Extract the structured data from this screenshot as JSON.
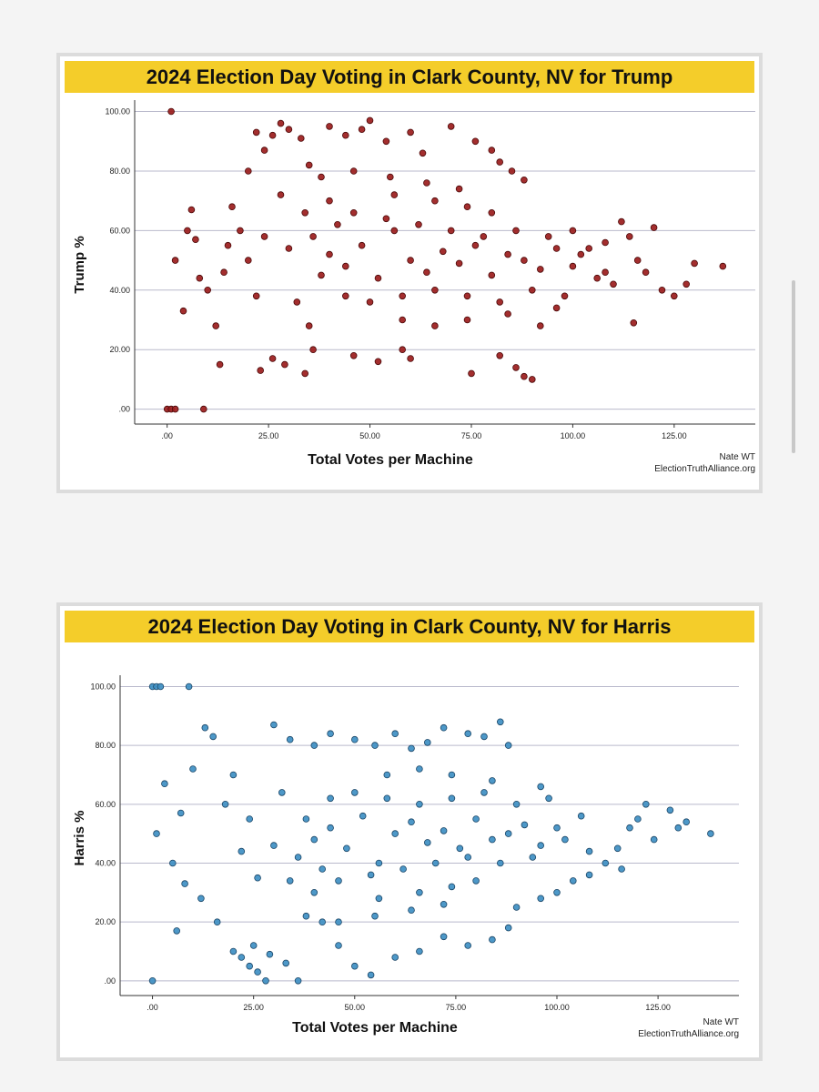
{
  "chart_data": [
    {
      "type": "scatter",
      "title": "2024 Election Day Voting in Clark County, NV for Trump",
      "xlabel": "Total Votes per Machine",
      "ylabel": "Trump %",
      "xlim": [
        -8,
        145
      ],
      "ylim": [
        -5,
        102
      ],
      "x_ticks": [
        ".00",
        "25.00",
        "50.00",
        "75.00",
        "100.00",
        "125.00"
      ],
      "y_ticks": [
        ".00",
        "20.00",
        "40.00",
        "60.00",
        "80.00",
        "100.00"
      ],
      "grid": "horizontal",
      "credit": [
        "Nate WT",
        "ElectionTruthAlliance.org"
      ],
      "point_color": "#9b1c1c",
      "point_stroke": "#4a0808",
      "points": [
        [
          1,
          100
        ],
        [
          0,
          0
        ],
        [
          1,
          0
        ],
        [
          2,
          0
        ],
        [
          9,
          0
        ],
        [
          2,
          50
        ],
        [
          4,
          33
        ],
        [
          5,
          60
        ],
        [
          7,
          57
        ],
        [
          6,
          67
        ],
        [
          8,
          44
        ],
        [
          10,
          40
        ],
        [
          12,
          28
        ],
        [
          14,
          46
        ],
        [
          15,
          55
        ],
        [
          13,
          15
        ],
        [
          16,
          68
        ],
        [
          18,
          60
        ],
        [
          20,
          50
        ],
        [
          20,
          80
        ],
        [
          22,
          93
        ],
        [
          24,
          87
        ],
        [
          26,
          92
        ],
        [
          28,
          96
        ],
        [
          30,
          94
        ],
        [
          33,
          91
        ],
        [
          23,
          13
        ],
        [
          26,
          17
        ],
        [
          29,
          15
        ],
        [
          34,
          12
        ],
        [
          36,
          20
        ],
        [
          22,
          38
        ],
        [
          24,
          58
        ],
        [
          28,
          72
        ],
        [
          35,
          82
        ],
        [
          35,
          28
        ],
        [
          40,
          95
        ],
        [
          44,
          92
        ],
        [
          48,
          94
        ],
        [
          50,
          97
        ],
        [
          54,
          90
        ],
        [
          60,
          93
        ],
        [
          63,
          86
        ],
        [
          70,
          95
        ],
        [
          76,
          90
        ],
        [
          80,
          87
        ],
        [
          82,
          83
        ],
        [
          85,
          80
        ],
        [
          88,
          77
        ],
        [
          46,
          18
        ],
        [
          52,
          16
        ],
        [
          58,
          20
        ],
        [
          60,
          17
        ],
        [
          75,
          12
        ],
        [
          82,
          18
        ],
        [
          86,
          14
        ],
        [
          88,
          11
        ],
        [
          90,
          10
        ],
        [
          92,
          28
        ],
        [
          100,
          60
        ],
        [
          104,
          54
        ],
        [
          108,
          46
        ],
        [
          110,
          42
        ],
        [
          112,
          63
        ],
        [
          114,
          58
        ],
        [
          116,
          50
        ],
        [
          118,
          46
        ],
        [
          120,
          61
        ],
        [
          122,
          40
        ],
        [
          125,
          38
        ],
        [
          128,
          42
        ],
        [
          130,
          49
        ],
        [
          137,
          48
        ],
        [
          115,
          29
        ],
        [
          40,
          52
        ],
        [
          44,
          48
        ],
        [
          48,
          55
        ],
        [
          52,
          44
        ],
        [
          56,
          60
        ],
        [
          60,
          50
        ],
        [
          64,
          46
        ],
        [
          68,
          53
        ],
        [
          72,
          49
        ],
        [
          76,
          55
        ],
        [
          80,
          45
        ],
        [
          84,
          52
        ],
        [
          88,
          50
        ],
        [
          92,
          47
        ],
        [
          96,
          54
        ],
        [
          100,
          48
        ],
        [
          42,
          62
        ],
        [
          46,
          66
        ],
        [
          54,
          64
        ],
        [
          62,
          62
        ],
        [
          70,
          60
        ],
        [
          78,
          58
        ],
        [
          86,
          60
        ],
        [
          94,
          58
        ],
        [
          102,
          52
        ],
        [
          108,
          56
        ],
        [
          44,
          38
        ],
        [
          50,
          36
        ],
        [
          58,
          38
        ],
        [
          66,
          40
        ],
        [
          74,
          38
        ],
        [
          82,
          36
        ],
        [
          90,
          40
        ],
        [
          98,
          38
        ],
        [
          106,
          44
        ],
        [
          36,
          58
        ],
        [
          38,
          45
        ],
        [
          40,
          70
        ],
        [
          56,
          72
        ],
        [
          66,
          70
        ],
        [
          74,
          68
        ],
        [
          80,
          66
        ],
        [
          58,
          30
        ],
        [
          66,
          28
        ],
        [
          74,
          30
        ],
        [
          84,
          32
        ],
        [
          96,
          34
        ],
        [
          30,
          54
        ],
        [
          32,
          36
        ],
        [
          34,
          66
        ],
        [
          38,
          78
        ],
        [
          46,
          80
        ],
        [
          55,
          78
        ],
        [
          64,
          76
        ],
        [
          72,
          74
        ]
      ]
    },
    {
      "type": "scatter",
      "title": "2024 Election Day Voting in Clark County, NV for Harris",
      "xlabel": "Total Votes per Machine",
      "ylabel": "Harris %",
      "xlim": [
        -8,
        145
      ],
      "ylim": [
        -5,
        102
      ],
      "x_ticks": [
        ".00",
        "25.00",
        "50.00",
        "75.00",
        "100.00",
        "125.00"
      ],
      "y_ticks": [
        ".00",
        "20.00",
        "40.00",
        "60.00",
        "80.00",
        "100.00"
      ],
      "grid": "horizontal",
      "credit": [
        "Nate WT",
        "ElectionTruthAlliance.org"
      ],
      "point_color": "#3e8fc3",
      "point_stroke": "#1a4566",
      "points": [
        [
          0,
          100
        ],
        [
          1,
          100
        ],
        [
          2,
          100
        ],
        [
          9,
          100
        ],
        [
          0,
          0
        ],
        [
          1,
          50
        ],
        [
          3,
          67
        ],
        [
          5,
          40
        ],
        [
          6,
          17
        ],
        [
          7,
          57
        ],
        [
          8,
          33
        ],
        [
          10,
          72
        ],
        [
          12,
          28
        ],
        [
          13,
          86
        ],
        [
          15,
          83
        ],
        [
          16,
          20
        ],
        [
          18,
          60
        ],
        [
          20,
          10
        ],
        [
          22,
          8
        ],
        [
          24,
          5
        ],
        [
          26,
          3
        ],
        [
          28,
          0
        ],
        [
          30,
          87
        ],
        [
          34,
          82
        ],
        [
          36,
          0
        ],
        [
          25,
          12
        ],
        [
          29,
          9
        ],
        [
          33,
          6
        ],
        [
          20,
          70
        ],
        [
          22,
          44
        ],
        [
          24,
          55
        ],
        [
          26,
          35
        ],
        [
          40,
          80
        ],
        [
          44,
          84
        ],
        [
          50,
          82
        ],
        [
          55,
          80
        ],
        [
          60,
          84
        ],
        [
          64,
          79
        ],
        [
          68,
          81
        ],
        [
          72,
          86
        ],
        [
          78,
          84
        ],
        [
          82,
          83
        ],
        [
          86,
          88
        ],
        [
          88,
          80
        ],
        [
          42,
          20
        ],
        [
          46,
          12
        ],
        [
          50,
          5
        ],
        [
          54,
          2
        ],
        [
          60,
          8
        ],
        [
          66,
          10
        ],
        [
          72,
          15
        ],
        [
          78,
          12
        ],
        [
          84,
          14
        ],
        [
          88,
          18
        ],
        [
          90,
          25
        ],
        [
          96,
          28
        ],
        [
          100,
          30
        ],
        [
          104,
          34
        ],
        [
          108,
          36
        ],
        [
          112,
          40
        ],
        [
          116,
          38
        ],
        [
          118,
          52
        ],
        [
          120,
          55
        ],
        [
          122,
          60
        ],
        [
          124,
          48
        ],
        [
          128,
          58
        ],
        [
          130,
          52
        ],
        [
          132,
          54
        ],
        [
          138,
          50
        ],
        [
          115,
          45
        ],
        [
          40,
          48
        ],
        [
          44,
          52
        ],
        [
          48,
          45
        ],
        [
          52,
          56
        ],
        [
          56,
          40
        ],
        [
          60,
          50
        ],
        [
          64,
          54
        ],
        [
          68,
          47
        ],
        [
          72,
          51
        ],
        [
          76,
          45
        ],
        [
          80,
          55
        ],
        [
          84,
          48
        ],
        [
          88,
          50
        ],
        [
          92,
          53
        ],
        [
          96,
          46
        ],
        [
          100,
          52
        ],
        [
          42,
          38
        ],
        [
          46,
          34
        ],
        [
          54,
          36
        ],
        [
          62,
          38
        ],
        [
          70,
          40
        ],
        [
          78,
          42
        ],
        [
          86,
          40
        ],
        [
          94,
          42
        ],
        [
          102,
          48
        ],
        [
          108,
          44
        ],
        [
          44,
          62
        ],
        [
          50,
          64
        ],
        [
          58,
          62
        ],
        [
          66,
          60
        ],
        [
          74,
          62
        ],
        [
          82,
          64
        ],
        [
          90,
          60
        ],
        [
          98,
          62
        ],
        [
          106,
          56
        ],
        [
          36,
          42
        ],
        [
          38,
          55
        ],
        [
          40,
          30
        ],
        [
          56,
          28
        ],
        [
          66,
          30
        ],
        [
          74,
          32
        ],
        [
          80,
          34
        ],
        [
          58,
          70
        ],
        [
          66,
          72
        ],
        [
          74,
          70
        ],
        [
          84,
          68
        ],
        [
          96,
          66
        ],
        [
          30,
          46
        ],
        [
          32,
          64
        ],
        [
          34,
          34
        ],
        [
          38,
          22
        ],
        [
          46,
          20
        ],
        [
          55,
          22
        ],
        [
          64,
          24
        ],
        [
          72,
          26
        ]
      ]
    }
  ]
}
